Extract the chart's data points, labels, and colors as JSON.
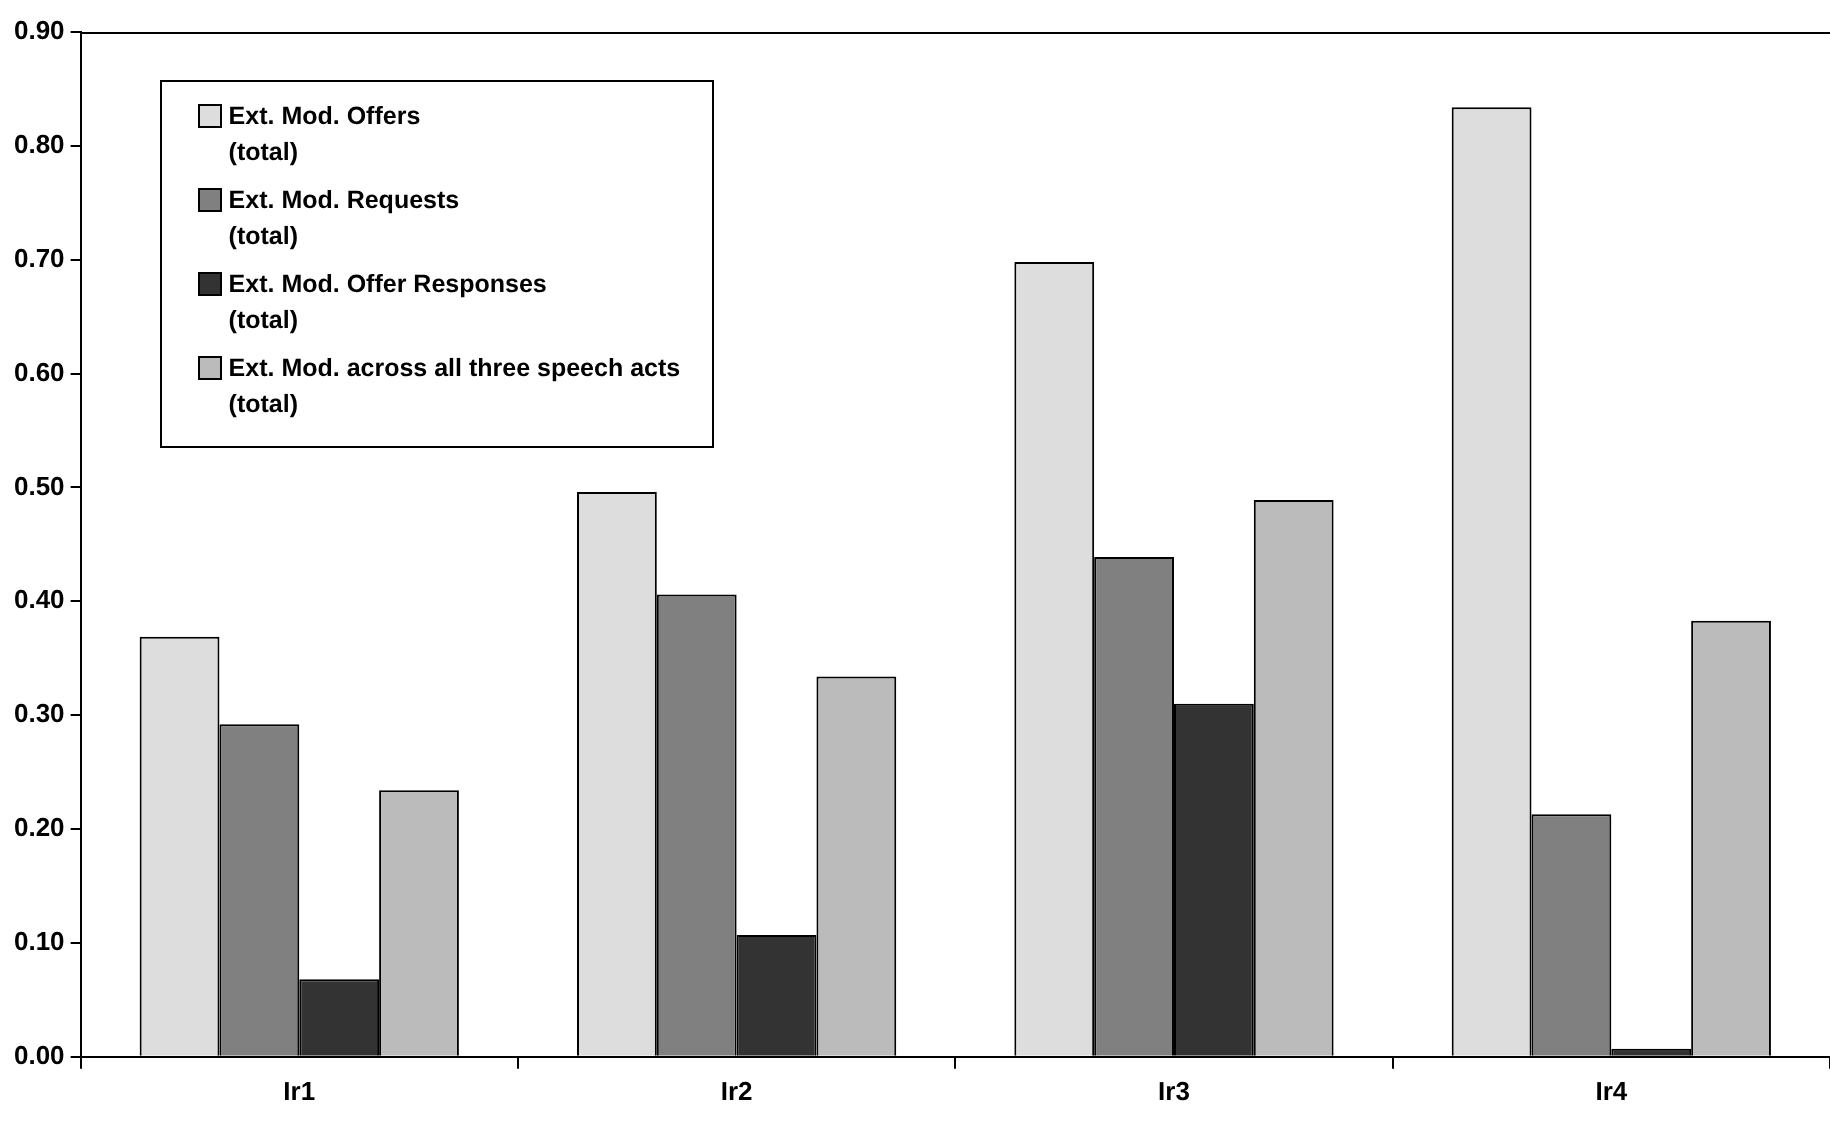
{
  "chart_data": {
    "type": "bar",
    "categories": [
      "Ir1",
      "Ir2",
      "Ir3",
      "Ir4"
    ],
    "series": [
      {
        "name": "Ext. Mod. Offers (total)",
        "color": "#dddddd",
        "values": [
          0.369,
          0.496,
          0.698,
          0.834
        ]
      },
      {
        "name": "Ext. Mod. Requests (total)",
        "color": "#808080",
        "values": [
          0.292,
          0.406,
          0.439,
          0.213
        ]
      },
      {
        "name": "Ext. Mod. Offer Responses (total)",
        "color": "#333333",
        "values": [
          0.068,
          0.107,
          0.31,
          0.007
        ]
      },
      {
        "name": "Ext. Mod. across all three speech acts (total)",
        "color": "#bbbbbb",
        "values": [
          0.234,
          0.334,
          0.489,
          0.383
        ]
      }
    ],
    "ylim": [
      0,
      0.9
    ],
    "yticks": [
      {
        "value": 0,
        "label": "0.00"
      },
      {
        "value": 0.1,
        "label": "0.10"
      },
      {
        "value": 0.2,
        "label": "0.20"
      },
      {
        "value": 0.3,
        "label": "0.30"
      },
      {
        "value": 0.4,
        "label": "0.40"
      },
      {
        "value": 0.5,
        "label": "0.50"
      },
      {
        "value": 0.6,
        "label": "0.60"
      },
      {
        "value": 0.7,
        "label": "0.70"
      },
      {
        "value": 0.8,
        "label": "0.80"
      },
      {
        "value": 0.9,
        "label": "0.90"
      }
    ],
    "grid": false,
    "legend": "top left"
  }
}
